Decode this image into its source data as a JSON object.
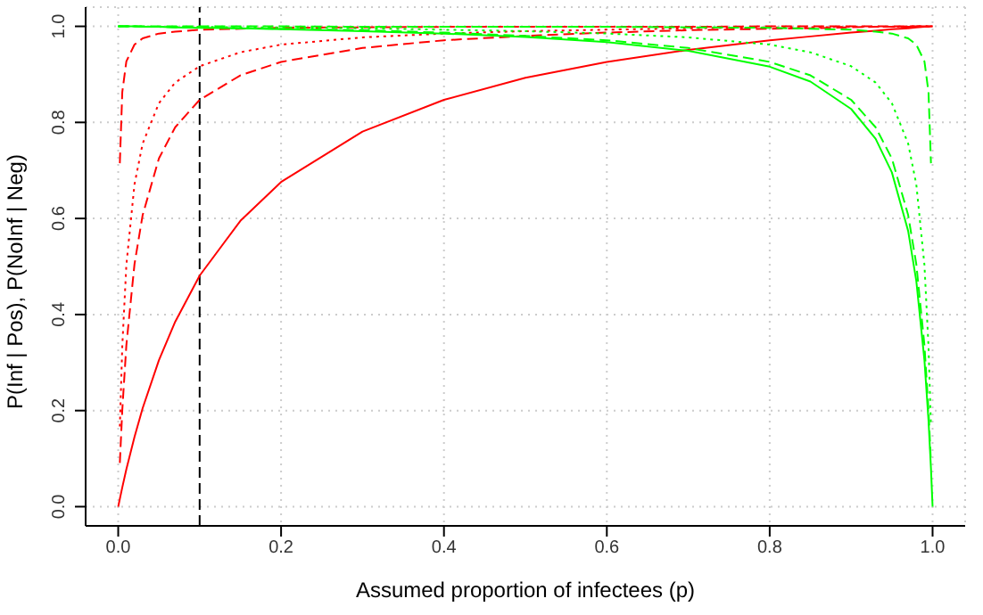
{
  "chart_data": {
    "type": "line",
    "xlabel": "Assumed proportion of infectees (p)",
    "ylabel": "P(Inf | Pos),  P(NoInf | Neg)",
    "x": [
      0,
      0.002,
      0.005,
      0.01,
      0.02,
      0.03,
      0.05,
      0.07,
      0.1,
      0.15,
      0.2,
      0.3,
      0.4,
      0.5,
      0.6,
      0.7,
      0.8,
      0.85,
      0.9,
      0.93,
      0.95,
      0.97,
      0.98,
      0.99,
      0.995,
      0.998,
      1
    ],
    "xlim": [
      -0.04,
      1.04
    ],
    "ylim": [
      -0.04,
      1.04
    ],
    "xticks": [
      {
        "value": 0,
        "label": "0.0"
      },
      0.2,
      0.4,
      0.6,
      0.8,
      {
        "value": 1,
        "label": "1.0"
      }
    ],
    "yticks": [
      {
        "value": 0,
        "label": "0.0"
      },
      0.2,
      0.4,
      0.6,
      0.8,
      {
        "value": 1,
        "label": "1.0"
      }
    ],
    "grid": true,
    "marker": "none",
    "series": [
      {
        "color": "#ff0000",
        "line_style": "solid",
        "values": [
          0,
          0.016,
          0.04,
          0.078,
          0.145,
          0.205,
          0.305,
          0.385,
          0.481,
          0.595,
          0.676,
          0.781,
          0.847,
          0.893,
          0.926,
          0.951,
          0.971,
          0.979,
          0.987,
          0.991,
          0.994,
          0.996,
          0.998,
          0.999,
          0.999,
          1,
          1
        ]
      },
      {
        "color": "#ff0000",
        "line_style": "dashed",
        "values": [
          null,
          0.091,
          0.201,
          0.336,
          0.505,
          0.607,
          0.725,
          0.79,
          0.847,
          0.898,
          0.926,
          0.955,
          0.971,
          0.98,
          0.987,
          0.992,
          0.995,
          0.996,
          0.998,
          0.999,
          0.999,
          0.999,
          1,
          1,
          1,
          1,
          1
        ]
      },
      {
        "color": "#ff0000",
        "line_style": "dotted",
        "values": [
          null,
          0.167,
          0.334,
          0.503,
          0.671,
          0.756,
          0.84,
          0.883,
          0.917,
          0.946,
          0.962,
          0.977,
          0.985,
          0.99,
          0.993,
          0.996,
          0.998,
          0.998,
          0.999,
          0.999,
          0.999,
          1,
          1,
          1,
          1,
          1,
          1
        ]
      },
      {
        "color": "#ff0000",
        "line_style": "dashed",
        "values": [
          null,
          0.715,
          0.863,
          0.927,
          0.962,
          0.975,
          0.985,
          0.989,
          0.993,
          0.995,
          0.997,
          0.998,
          0.999,
          0.999,
          0.999,
          0.999,
          1,
          1,
          1,
          1,
          1,
          1,
          1,
          1,
          1,
          1,
          1
        ]
      },
      {
        "color": "#00ff00",
        "line_style": "solid",
        "values": [
          1,
          1,
          1,
          1,
          1,
          0.999,
          0.999,
          0.998,
          0.997,
          0.996,
          0.994,
          0.99,
          0.985,
          0.978,
          0.967,
          0.949,
          0.916,
          0.885,
          0.828,
          0.766,
          0.696,
          0.574,
          0.47,
          0.305,
          0.179,
          0.08,
          0
        ]
      },
      {
        "color": "#00ff00",
        "line_style": "dashed",
        "values": [
          1,
          1,
          1,
          1,
          1,
          0.999,
          0.999,
          0.998,
          0.998,
          0.996,
          0.995,
          0.992,
          0.987,
          0.98,
          0.971,
          0.955,
          0.926,
          0.898,
          0.847,
          0.79,
          0.725,
          0.607,
          0.505,
          0.336,
          0.201,
          0.091,
          null
        ]
      },
      {
        "color": "#00ff00",
        "line_style": "dotted",
        "values": [
          1,
          1,
          1,
          1,
          1,
          1,
          0.999,
          0.999,
          0.999,
          0.998,
          0.998,
          0.996,
          0.993,
          0.99,
          0.985,
          0.977,
          0.962,
          0.946,
          0.917,
          0.883,
          0.84,
          0.756,
          0.671,
          0.503,
          0.334,
          0.167,
          null
        ]
      },
      {
        "color": "#00ff00",
        "line_style": "dashed",
        "values": [
          1,
          1,
          1,
          1,
          1,
          1,
          1,
          1,
          1,
          1,
          1,
          0.999,
          0.999,
          0.999,
          0.999,
          0.998,
          0.997,
          0.995,
          0.993,
          0.989,
          0.985,
          0.975,
          0.962,
          0.927,
          0.863,
          0.715,
          null
        ]
      }
    ],
    "ref_lines": [
      {
        "axis": "x",
        "value": 0.1,
        "color": "#000000",
        "line_style": "dashed"
      }
    ]
  }
}
